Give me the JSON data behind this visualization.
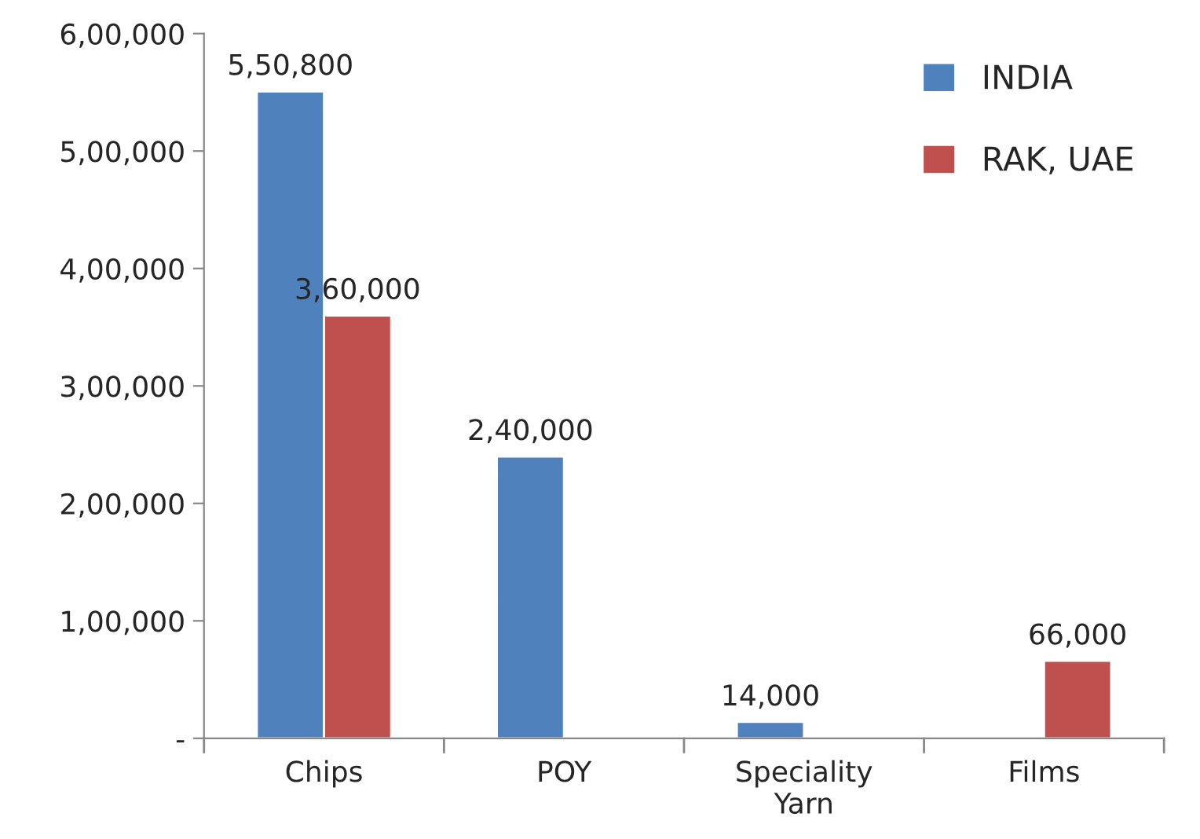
{
  "chart_data": {
    "type": "bar",
    "categories": [
      "Chips",
      "POY",
      "Speciality\nYarn",
      "Films"
    ],
    "series": [
      {
        "name": "INDIA",
        "color": "#4f81bd",
        "values": [
          550800,
          240000,
          14000,
          null
        ],
        "value_labels": [
          "5,50,800",
          "2,40,000",
          "14,000",
          null
        ]
      },
      {
        "name": "RAK, UAE",
        "color": "#c0504d",
        "values": [
          360000,
          null,
          null,
          66000
        ],
        "value_labels": [
          "3,60,000",
          null,
          null,
          "66,000"
        ]
      }
    ],
    "ylim": [
      0,
      600000
    ],
    "yticks": [
      {
        "value": 0,
        "label": "-"
      },
      {
        "value": 100000,
        "label": "1,00,000"
      },
      {
        "value": 200000,
        "label": "2,00,000"
      },
      {
        "value": 300000,
        "label": "3,00,000"
      },
      {
        "value": 400000,
        "label": "4,00,000"
      },
      {
        "value": 500000,
        "label": "5,00,000"
      },
      {
        "value": 600000,
        "label": "6,00,000"
      }
    ],
    "grid": false,
    "legend": "top right"
  }
}
